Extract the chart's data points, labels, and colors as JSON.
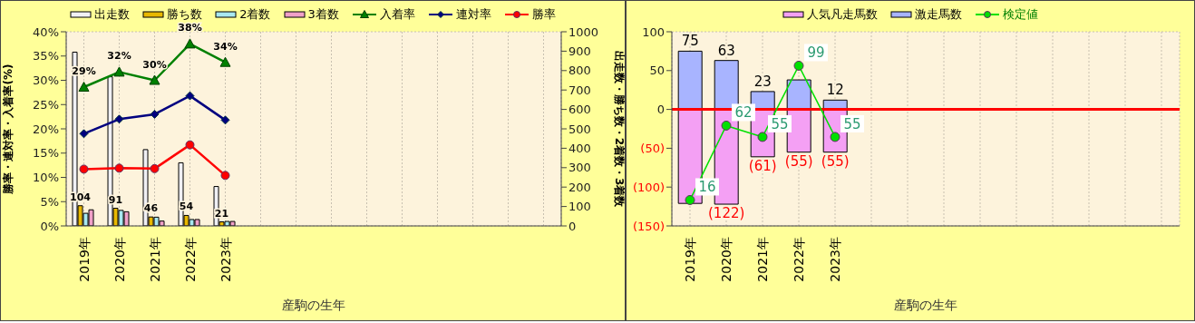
{
  "chart_data": [
    {
      "type": "bar",
      "categories": [
        "2019年",
        "2020年",
        "2021年",
        "2022年",
        "2023年",
        null,
        null,
        null,
        null,
        null,
        null,
        null,
        null,
        null
      ],
      "xlabel": "産駒の生年",
      "ylabel": "勝率・連対率・入着率(%)",
      "y2label": "出走数・勝ち数・2着数・3着数",
      "ylim": [
        0,
        40
      ],
      "yticks": [
        {
          "value": 0,
          "label": "0%"
        },
        {
          "value": 5,
          "label": "5%"
        },
        {
          "value": 10,
          "label": "10%"
        },
        {
          "value": 15,
          "label": "15%"
        },
        {
          "value": 20,
          "label": "20%"
        },
        {
          "value": 25,
          "label": "25%"
        },
        {
          "value": 30,
          "label": "30%"
        },
        {
          "value": 35,
          "label": "35%"
        },
        {
          "value": 40,
          "label": "40%"
        }
      ],
      "y2lim": [
        0,
        1000
      ],
      "y2ticks": [
        0,
        100,
        200,
        300,
        400,
        500,
        600,
        700,
        800,
        900,
        1000
      ],
      "grid": true,
      "legend": "top",
      "series": [
        {
          "name": "出走数",
          "axis": "y2",
          "color": "#f0f0f4",
          "values": [
            895,
            768,
            393,
            325,
            203,
            null,
            null,
            null,
            null,
            null,
            null,
            null,
            null,
            null
          ]
        },
        {
          "name": "勝ち数",
          "axis": "y2",
          "color": "#e8b800",
          "values": [
            104,
            91,
            46,
            54,
            21,
            null,
            null,
            null,
            null,
            null,
            null,
            null,
            null,
            null
          ],
          "value_labels": [
            "104",
            "91",
            "46",
            "54",
            "21",
            null,
            null,
            null,
            null,
            null,
            null,
            null,
            null,
            null
          ]
        },
        {
          "name": "2着数",
          "axis": "y2",
          "color": "#a8e8f0",
          "values": [
            65,
            80,
            45,
            33,
            23,
            null,
            null,
            null,
            null,
            null,
            null,
            null,
            null,
            null
          ]
        },
        {
          "name": "3着数",
          "axis": "y2",
          "color": "#f0a0c8",
          "values": [
            83,
            73,
            25,
            33,
            23,
            null,
            null,
            null,
            null,
            null,
            null,
            null,
            null,
            null
          ]
        },
        {
          "name": "入着率",
          "type": "line",
          "color": "#008000",
          "marker": "triangle",
          "values": [
            28.6,
            31.7,
            30.0,
            37.5,
            33.7,
            null,
            null,
            null,
            null,
            null,
            null,
            null,
            null,
            null
          ],
          "value_labels": [
            "29%",
            "32%",
            "30%",
            "38%",
            "34%",
            null,
            null,
            null,
            null,
            null,
            null,
            null,
            null,
            null
          ]
        },
        {
          "name": "連対率",
          "type": "line",
          "color": "#000080",
          "marker": "diamond",
          "values": [
            19.0,
            22.0,
            23.0,
            26.8,
            21.8,
            null,
            null,
            null,
            null,
            null,
            null,
            null,
            null,
            null
          ]
        },
        {
          "name": "勝率",
          "type": "line",
          "color": "#ff0000",
          "marker": "circle",
          "values": [
            11.7,
            11.9,
            11.8,
            16.7,
            10.4,
            null,
            null,
            null,
            null,
            null,
            null,
            null,
            null,
            null
          ]
        }
      ]
    },
    {
      "type": "bar",
      "stacked": true,
      "categories": [
        "2019年",
        "2020年",
        "2021年",
        "2022年",
        "2023年",
        null,
        null,
        null,
        null,
        null,
        null,
        null,
        null,
        null
      ],
      "xlabel": "産駒の生年",
      "ylim": [
        -150,
        100
      ],
      "yticks": [
        {
          "value": -150,
          "label": "(150)"
        },
        {
          "value": -100,
          "label": "(100)"
        },
        {
          "value": -50,
          "label": "(50)"
        },
        0,
        50,
        100
      ],
      "y2lim": [
        0,
        120
      ],
      "grid": true,
      "legend": "top",
      "ref_lines": [
        {
          "axis": "y",
          "value": 0,
          "color": "#ff0000"
        }
      ],
      "series": [
        {
          "name": "人気凡走馬数",
          "color": "#f4a0f4",
          "values": [
            -121,
            -122,
            -61,
            -55,
            -55,
            null,
            null,
            null,
            null,
            null,
            null,
            null,
            null,
            null
          ],
          "value_labels": [
            null,
            "(122)",
            "(61)",
            "(55)",
            "(55)",
            null,
            null,
            null,
            null,
            null,
            null,
            null,
            null,
            null
          ]
        },
        {
          "name": "激走馬数",
          "color": "#a8b4ff",
          "values": [
            75,
            63,
            23,
            38,
            12,
            null,
            null,
            null,
            null,
            null,
            null,
            null,
            null,
            null
          ],
          "value_labels": [
            "75",
            "63",
            "23",
            null,
            "12",
            null,
            null,
            null,
            null,
            null,
            null,
            null,
            null,
            null
          ]
        },
        {
          "name": "検定値",
          "type": "line",
          "axis": "y2",
          "color": "#00e000",
          "marker": "circle",
          "values": [
            16,
            62,
            55,
            99,
            55,
            null,
            null,
            null,
            null,
            null,
            null,
            null,
            null,
            null
          ],
          "value_labels": [
            "16",
            "62",
            "55",
            "99",
            "55",
            null,
            null,
            null,
            null,
            null,
            null,
            null,
            null,
            null
          ]
        }
      ]
    }
  ]
}
